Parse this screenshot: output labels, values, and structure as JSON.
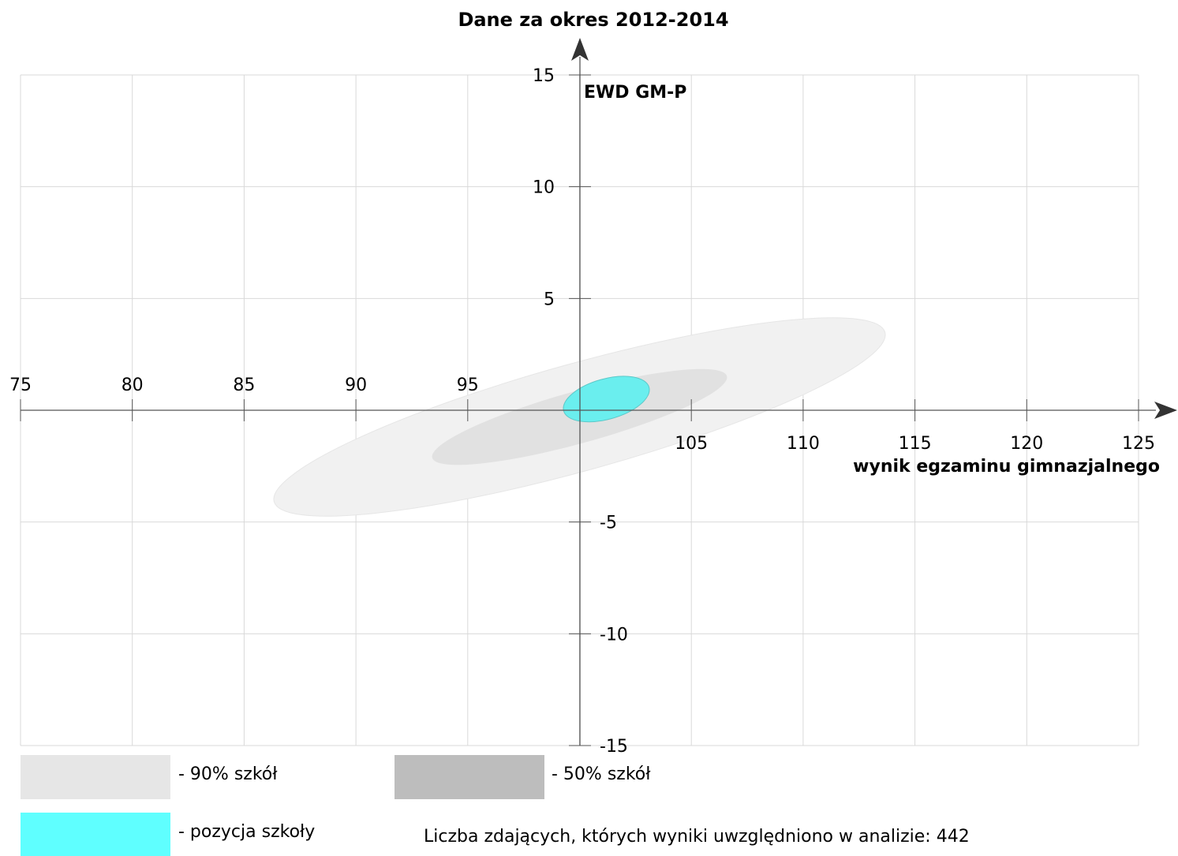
{
  "chart_data": {
    "type": "scatter",
    "title": "Dane za okres 2012-2014",
    "xlabel": "wynik egzaminu gimnazjalnego",
    "ylabel": "EWD GM-P",
    "xlim": [
      75,
      125
    ],
    "ylim": [
      -15,
      15
    ],
    "x_ticks": [
      "75",
      "80",
      "85",
      "90",
      "95",
      "105",
      "110",
      "115",
      "120",
      "125"
    ],
    "y_ticks": [
      "15",
      "10",
      "5",
      "-5",
      "-10",
      "-15"
    ],
    "grid": true,
    "regions": [
      {
        "name": "90% szkół",
        "center": [
          100,
          -0.3
        ],
        "x_range": [
          85.7,
          114.3
        ],
        "y_range": [
          -6.4,
          5.8
        ],
        "color": "#f1f1f1"
      },
      {
        "name": "50% szkół",
        "center": [
          100,
          -0.3
        ],
        "x_range": [
          93.1,
          106.9
        ],
        "y_range": [
          -3.1,
          2.8
        ],
        "color": "#e1e1e1"
      },
      {
        "name": "pozycja szkoły",
        "center": [
          101.2,
          0.5
        ],
        "x_range": [
          98.9,
          103.2
        ],
        "y_range": [
          -0.9,
          1.9
        ],
        "color": "#6aeeee"
      }
    ]
  },
  "legend": [
    {
      "label": "- 90% szkół",
      "color": "#e6e6e6"
    },
    {
      "label": "- 50% szkół",
      "color": "#bdbdbd"
    },
    {
      "label": "- pozycja szkoły",
      "color": "#5fffff"
    }
  ],
  "footer": {
    "note": "Liczba zdających, których wyniki uwzględniono w analizie: 442"
  }
}
